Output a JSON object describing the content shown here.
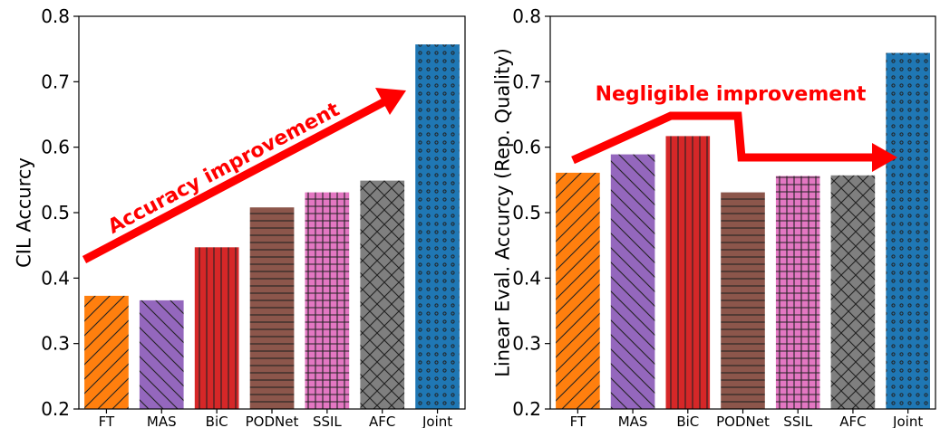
{
  "colors": {
    "FT": "#ff7f0e",
    "MAS": "#9467bd",
    "BiC": "#d62728",
    "PODNet": "#8c564b",
    "SSIL": "#e377c2",
    "AFC": "#7f7f7f",
    "Joint": "#1f77b4",
    "annotation": "#ff0000"
  },
  "chart_data": [
    {
      "type": "bar",
      "categories": [
        "FT",
        "MAS",
        "BiC",
        "PODNet",
        "SSIL",
        "AFC",
        "Joint"
      ],
      "values": [
        0.373,
        0.366,
        0.447,
        0.508,
        0.531,
        0.549,
        0.757
      ],
      "hatches": [
        "diag-up",
        "diag-down",
        "vertical",
        "horizontal",
        "grid",
        "cross",
        "dots"
      ],
      "ylabel": "CIL Accurcy",
      "ylim": [
        0.2,
        0.8
      ],
      "yticks": [
        "0.2",
        "0.3",
        "0.4",
        "0.5",
        "0.6",
        "0.7",
        "0.8"
      ],
      "grid": false,
      "annotation": "Accuracy improvement"
    },
    {
      "type": "bar",
      "categories": [
        "FT",
        "MAS",
        "BiC",
        "PODNet",
        "SSIL",
        "AFC",
        "Joint"
      ],
      "values": [
        0.561,
        0.589,
        0.617,
        0.531,
        0.556,
        0.557,
        0.744
      ],
      "hatches": [
        "diag-up",
        "diag-down",
        "vertical",
        "horizontal",
        "grid",
        "cross",
        "dots"
      ],
      "ylabel": "Linear Eval. Accurcy (Rep. Quality)",
      "ylim": [
        0.2,
        0.8
      ],
      "yticks": [
        "0.2",
        "0.3",
        "0.4",
        "0.5",
        "0.6",
        "0.7",
        "0.8"
      ],
      "grid": false,
      "annotation": "Negligible improvement"
    }
  ]
}
